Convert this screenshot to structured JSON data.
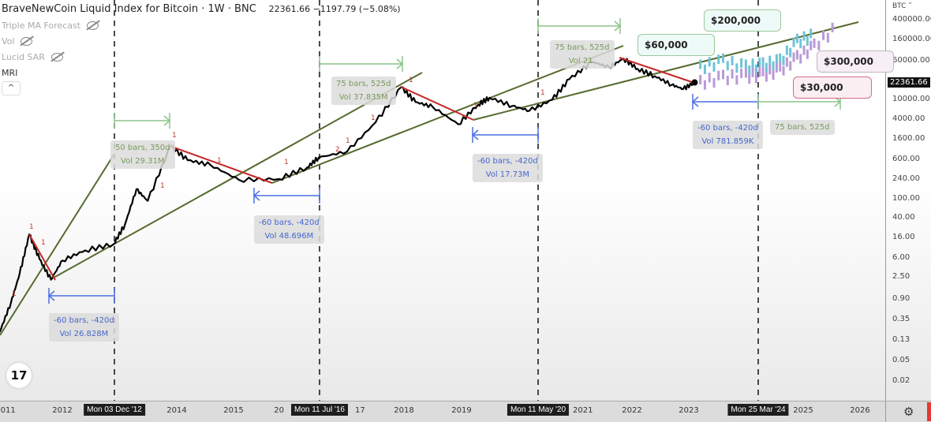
{
  "header": {
    "title": "BraveNewCoin Liquid Index for Bitcoin · 1W · BNC",
    "last": "22361.66",
    "change": "−1197.79",
    "change_pct": "(−5.08%)"
  },
  "indicators": [
    {
      "label": "Triple MA Forecast",
      "hidden": true
    },
    {
      "label": "Vol",
      "hidden": true
    },
    {
      "label": "Lucid SAR",
      "hidden": true
    },
    {
      "label": "MRI",
      "hidden": false
    }
  ],
  "collapse_icon": "chevron-up-icon",
  "logo": "17",
  "y_axis": {
    "currency": "BTC ˅",
    "ticks": [
      "400000.00",
      "160000.00",
      "60000.00",
      "10000.00",
      "4000.00",
      "1600.00",
      "600.00",
      "240.00",
      "100.00",
      "40.00",
      "16.00",
      "6.00",
      "2.50",
      "0.90",
      "0.35",
      "0.13",
      "0.05",
      "0.02"
    ],
    "current_price": "22361.66"
  },
  "x_axis": {
    "ticks": [
      "2011",
      "2012",
      "2014",
      "2015",
      "20",
      "17",
      "2018",
      "2019",
      "2021",
      "2022",
      "2023",
      "2025",
      "2026"
    ],
    "cursor_labels": [
      "Mon 03 Dec '12",
      "Mon 11 Jul '16",
      "Mon 11 May '20",
      "Mon 25 Mar '24"
    ],
    "settings_icon": "gear-icon"
  },
  "measures": [
    {
      "dir": "forward",
      "l1": "50 bars, 350d",
      "l2": "Vol 29.31M"
    },
    {
      "dir": "back",
      "l1": "-60 bars, -420d",
      "l2": "Vol 26.828M"
    },
    {
      "dir": "forward",
      "l1": "75 bars, 525d",
      "l2": "Vol 37.835M"
    },
    {
      "dir": "back",
      "l1": "-60 bars, -420d",
      "l2": "Vol 48.696M"
    },
    {
      "dir": "forward",
      "l1": "75 bars, 525d",
      "l2": "Vol 21."
    },
    {
      "dir": "back",
      "l1": "-60 bars, -420d",
      "l2": "Vol 17.73M"
    },
    {
      "dir": "back",
      "l1": "-60 bars, -420d",
      "l2": "Vol 781.859K"
    },
    {
      "dir": "forward",
      "l1": "75 bars, 525d",
      "l2": ""
    }
  ],
  "callouts": [
    "$60,000",
    "$200,000",
    "$300,000",
    "$30,000"
  ],
  "colors": {
    "price": "#000000",
    "downtrend": "#c62828",
    "trend": "#556b2f",
    "forward": "#8bc48a",
    "back": "#4a6fe3",
    "forecast_high": "#6fc3d6",
    "forecast_low": "#b99ad6"
  },
  "chart_data": {
    "type": "line",
    "title": "BraveNewCoin Liquid Index for Bitcoin · 1W · BNC",
    "y_scale": "log",
    "ylim": [
      0.02,
      400000
    ],
    "xlim": [
      2011,
      2026.5
    ],
    "grid": false,
    "series": [
      {
        "x": [
          2010.9,
          2011.1,
          2011.25,
          2011.42,
          2011.6,
          2011.8,
          2012.0,
          2012.4,
          2012.9,
          2013.1,
          2013.3,
          2013.5,
          2013.9,
          2014.2,
          2014.6,
          2015.1,
          2015.8,
          2016.3,
          2016.5,
          2017.0,
          2017.5,
          2017.95,
          2018.2,
          2018.5,
          2018.95,
          2019.3,
          2019.5,
          2019.9,
          2020.2,
          2020.6,
          2020.9,
          2021.3,
          2021.6,
          2021.85,
          2022.1,
          2022.4,
          2022.7,
          2022.9,
          2023.1
        ],
        "y": [
          0.2,
          0.8,
          3,
          19,
          6,
          2.3,
          5.6,
          9,
          12,
          30,
          155,
          90,
          1170,
          600,
          480,
          240,
          250,
          430,
          680,
          900,
          3500,
          18000,
          9000,
          7200,
          3200,
          8000,
          11000,
          7500,
          6000,
          10000,
          26000,
          59000,
          45000,
          68000,
          42000,
          30000,
          20000,
          16500,
          22361.66
        ]
      }
    ],
    "forecast": [
      {
        "x": [
          2023.2,
          2023.6,
          2024.0,
          2024.3,
          2024.6,
          2024.9,
          2025.2
        ],
        "y": [
          45000,
          60000,
          45000,
          50000,
          60000,
          150000,
          200000
        ]
      },
      {
        "x": [
          2023.2,
          2023.6,
          2024.0,
          2024.3,
          2024.6,
          2024.9,
          2025.2,
          2025.6
        ],
        "y": [
          22000,
          28000,
          30000,
          32000,
          40000,
          70000,
          120000,
          300000
        ]
      }
    ],
    "point_labels": [
      "1",
      "1",
      "1",
      "1",
      "1",
      "1",
      "1",
      "2",
      "1",
      "1",
      "1",
      "1",
      "1"
    ]
  }
}
